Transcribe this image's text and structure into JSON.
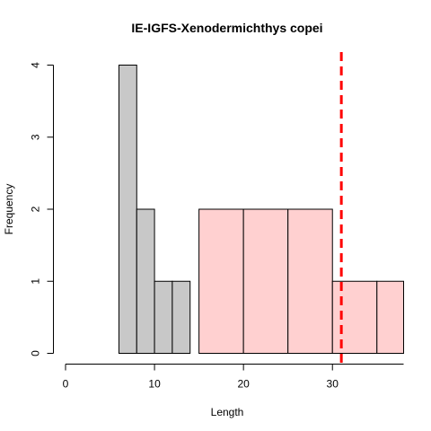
{
  "chart_data": {
    "type": "bar",
    "title": "IE-IGFS-Xenodermichthys copei",
    "xlabel": "Length",
    "ylabel": "Frequency",
    "xlim": [
      0,
      38
    ],
    "ylim": [
      0,
      4
    ],
    "x_ticks": [
      0,
      10,
      20,
      30
    ],
    "y_ticks": [
      0,
      1,
      2,
      3,
      4
    ],
    "series": [
      {
        "color": "#c8c8c8",
        "bins": [
          {
            "start": 6,
            "end": 8,
            "count": 4
          },
          {
            "start": 8,
            "end": 10,
            "count": 2
          },
          {
            "start": 10,
            "end": 12,
            "count": 1
          },
          {
            "start": 12,
            "end": 14,
            "count": 1
          }
        ]
      },
      {
        "color": "#ffd0d0",
        "bins": [
          {
            "start": 15,
            "end": 20,
            "count": 2
          },
          {
            "start": 20,
            "end": 25,
            "count": 2
          },
          {
            "start": 25,
            "end": 30,
            "count": 2
          },
          {
            "start": 30,
            "end": 35,
            "count": 1
          },
          {
            "start": 35,
            "end": 40,
            "count": 1
          }
        ]
      }
    ],
    "reference_line": {
      "x": 31,
      "color": "#ff0000",
      "style": "dashed"
    }
  }
}
